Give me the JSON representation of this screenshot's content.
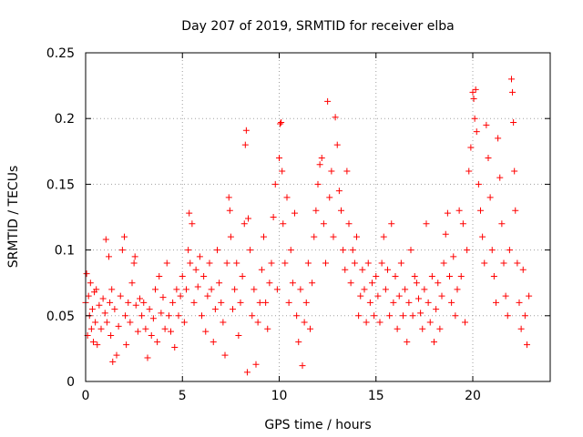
{
  "chart_data": {
    "type": "scatter",
    "title": "Day 207 of 2019, SRMTID for receiver elba",
    "xlabel": "GPS time / hours",
    "ylabel": "SRMTID / TECUs",
    "xlim": [
      0,
      24
    ],
    "ylim": [
      0,
      0.25
    ],
    "x_ticks": [
      0,
      5,
      10,
      15,
      20
    ],
    "y_ticks": [
      0,
      0.05,
      0.1,
      0.15,
      0.2,
      0.25
    ],
    "x_tick_labels": [
      "0",
      "5",
      "10",
      "15",
      "20"
    ],
    "y_tick_labels": [
      "0",
      "0.05",
      "0.1",
      "0.15",
      "0.2",
      "0.25"
    ],
    "grid": true,
    "marker": "+",
    "marker_color": "#ff0000",
    "x_range_of_data": [
      0,
      22.9
    ],
    "series": [
      {
        "name": "SRMTID",
        "points": [
          [
            0.0,
            0.06
          ],
          [
            0.05,
            0.082
          ],
          [
            0.1,
            0.035
          ],
          [
            0.15,
            0.065
          ],
          [
            0.2,
            0.05
          ],
          [
            0.25,
            0.075
          ],
          [
            0.3,
            0.04
          ],
          [
            0.35,
            0.055
          ],
          [
            0.4,
            0.03
          ],
          [
            0.45,
            0.068
          ],
          [
            0.5,
            0.045
          ],
          [
            0.55,
            0.07
          ],
          [
            0.6,
            0.028
          ],
          [
            0.7,
            0.058
          ],
          [
            0.8,
            0.04
          ],
          [
            0.9,
            0.063
          ],
          [
            1.0,
            0.052
          ],
          [
            1.05,
            0.108
          ],
          [
            1.1,
            0.045
          ],
          [
            1.2,
            0.095
          ],
          [
            1.25,
            0.06
          ],
          [
            1.3,
            0.035
          ],
          [
            1.35,
            0.07
          ],
          [
            1.4,
            0.015
          ],
          [
            1.5,
            0.055
          ],
          [
            1.6,
            0.02
          ],
          [
            1.7,
            0.042
          ],
          [
            1.8,
            0.065
          ],
          [
            1.9,
            0.1
          ],
          [
            2.0,
            0.11
          ],
          [
            2.05,
            0.05
          ],
          [
            2.1,
            0.028
          ],
          [
            2.2,
            0.06
          ],
          [
            2.3,
            0.045
          ],
          [
            2.4,
            0.075
          ],
          [
            2.5,
            0.09
          ],
          [
            2.55,
            0.095
          ],
          [
            2.6,
            0.058
          ],
          [
            2.7,
            0.038
          ],
          [
            2.8,
            0.063
          ],
          [
            2.9,
            0.05
          ],
          [
            3.0,
            0.06
          ],
          [
            3.1,
            0.04
          ],
          [
            3.2,
            0.018
          ],
          [
            3.3,
            0.055
          ],
          [
            3.4,
            0.035
          ],
          [
            3.5,
            0.048
          ],
          [
            3.6,
            0.07
          ],
          [
            3.7,
            0.03
          ],
          [
            3.8,
            0.08
          ],
          [
            3.9,
            0.052
          ],
          [
            4.0,
            0.064
          ],
          [
            4.1,
            0.04
          ],
          [
            4.2,
            0.09
          ],
          [
            4.3,
            0.05
          ],
          [
            4.4,
            0.038
          ],
          [
            4.5,
            0.06
          ],
          [
            4.6,
            0.026
          ],
          [
            4.7,
            0.07
          ],
          [
            4.8,
            0.05
          ],
          [
            4.9,
            0.065
          ],
          [
            5.0,
            0.08
          ],
          [
            5.1,
            0.045
          ],
          [
            5.2,
            0.07
          ],
          [
            5.3,
            0.1
          ],
          [
            5.35,
            0.128
          ],
          [
            5.4,
            0.09
          ],
          [
            5.5,
            0.12
          ],
          [
            5.6,
            0.06
          ],
          [
            5.7,
            0.085
          ],
          [
            5.8,
            0.072
          ],
          [
            5.9,
            0.095
          ],
          [
            6.0,
            0.05
          ],
          [
            6.1,
            0.08
          ],
          [
            6.2,
            0.038
          ],
          [
            6.3,
            0.065
          ],
          [
            6.4,
            0.09
          ],
          [
            6.5,
            0.07
          ],
          [
            6.6,
            0.03
          ],
          [
            6.7,
            0.055
          ],
          [
            6.8,
            0.1
          ],
          [
            6.9,
            0.075
          ],
          [
            7.0,
            0.06
          ],
          [
            7.1,
            0.045
          ],
          [
            7.2,
            0.02
          ],
          [
            7.3,
            0.09
          ],
          [
            7.4,
            0.14
          ],
          [
            7.45,
            0.13
          ],
          [
            7.5,
            0.11
          ],
          [
            7.6,
            0.055
          ],
          [
            7.7,
            0.07
          ],
          [
            7.8,
            0.09
          ],
          [
            7.9,
            0.035
          ],
          [
            8.0,
            0.06
          ],
          [
            8.1,
            0.08
          ],
          [
            8.2,
            0.12
          ],
          [
            8.25,
            0.18
          ],
          [
            8.3,
            0.191
          ],
          [
            8.35,
            0.007
          ],
          [
            8.4,
            0.124
          ],
          [
            8.5,
            0.1
          ],
          [
            8.6,
            0.05
          ],
          [
            8.7,
            0.07
          ],
          [
            8.8,
            0.013
          ],
          [
            8.9,
            0.045
          ],
          [
            9.0,
            0.06
          ],
          [
            9.1,
            0.085
          ],
          [
            9.2,
            0.11
          ],
          [
            9.3,
            0.06
          ],
          [
            9.4,
            0.04
          ],
          [
            9.5,
            0.075
          ],
          [
            9.6,
            0.09
          ],
          [
            9.7,
            0.125
          ],
          [
            9.8,
            0.15
          ],
          [
            9.9,
            0.07
          ],
          [
            10.0,
            0.17
          ],
          [
            10.05,
            0.196
          ],
          [
            10.1,
            0.197
          ],
          [
            10.15,
            0.16
          ],
          [
            10.2,
            0.12
          ],
          [
            10.3,
            0.09
          ],
          [
            10.4,
            0.14
          ],
          [
            10.5,
            0.06
          ],
          [
            10.6,
            0.1
          ],
          [
            10.7,
            0.075
          ],
          [
            10.8,
            0.128
          ],
          [
            10.9,
            0.05
          ],
          [
            11.0,
            0.03
          ],
          [
            11.1,
            0.07
          ],
          [
            11.2,
            0.012
          ],
          [
            11.3,
            0.045
          ],
          [
            11.4,
            0.06
          ],
          [
            11.5,
            0.09
          ],
          [
            11.6,
            0.04
          ],
          [
            11.7,
            0.075
          ],
          [
            11.8,
            0.11
          ],
          [
            11.9,
            0.13
          ],
          [
            12.0,
            0.15
          ],
          [
            12.1,
            0.165
          ],
          [
            12.2,
            0.17
          ],
          [
            12.3,
            0.12
          ],
          [
            12.4,
            0.09
          ],
          [
            12.5,
            0.213
          ],
          [
            12.6,
            0.14
          ],
          [
            12.7,
            0.16
          ],
          [
            12.8,
            0.11
          ],
          [
            12.9,
            0.201
          ],
          [
            13.0,
            0.18
          ],
          [
            13.1,
            0.145
          ],
          [
            13.2,
            0.13
          ],
          [
            13.3,
            0.1
          ],
          [
            13.4,
            0.085
          ],
          [
            13.5,
            0.16
          ],
          [
            13.6,
            0.12
          ],
          [
            13.7,
            0.075
          ],
          [
            13.8,
            0.1
          ],
          [
            13.9,
            0.09
          ],
          [
            14.0,
            0.11
          ],
          [
            14.1,
            0.05
          ],
          [
            14.2,
            0.065
          ],
          [
            14.3,
            0.085
          ],
          [
            14.4,
            0.07
          ],
          [
            14.5,
            0.045
          ],
          [
            14.6,
            0.09
          ],
          [
            14.7,
            0.06
          ],
          [
            14.8,
            0.075
          ],
          [
            14.9,
            0.05
          ],
          [
            15.0,
            0.08
          ],
          [
            15.1,
            0.065
          ],
          [
            15.2,
            0.045
          ],
          [
            15.3,
            0.09
          ],
          [
            15.4,
            0.11
          ],
          [
            15.5,
            0.07
          ],
          [
            15.6,
            0.085
          ],
          [
            15.7,
            0.05
          ],
          [
            15.8,
            0.12
          ],
          [
            15.9,
            0.06
          ],
          [
            16.0,
            0.08
          ],
          [
            16.1,
            0.04
          ],
          [
            16.2,
            0.065
          ],
          [
            16.3,
            0.09
          ],
          [
            16.4,
            0.05
          ],
          [
            16.5,
            0.07
          ],
          [
            16.6,
            0.03
          ],
          [
            16.7,
            0.06
          ],
          [
            16.8,
            0.1
          ],
          [
            16.9,
            0.05
          ],
          [
            17.0,
            0.08
          ],
          [
            17.1,
            0.075
          ],
          [
            17.2,
            0.063
          ],
          [
            17.3,
            0.052
          ],
          [
            17.4,
            0.04
          ],
          [
            17.5,
            0.07
          ],
          [
            17.6,
            0.12
          ],
          [
            17.7,
            0.06
          ],
          [
            17.8,
            0.045
          ],
          [
            17.9,
            0.08
          ],
          [
            18.0,
            0.03
          ],
          [
            18.1,
            0.055
          ],
          [
            18.2,
            0.075
          ],
          [
            18.3,
            0.04
          ],
          [
            18.4,
            0.065
          ],
          [
            18.5,
            0.09
          ],
          [
            18.6,
            0.112
          ],
          [
            18.7,
            0.128
          ],
          [
            18.8,
            0.08
          ],
          [
            18.9,
            0.06
          ],
          [
            19.0,
            0.095
          ],
          [
            19.1,
            0.05
          ],
          [
            19.2,
            0.07
          ],
          [
            19.3,
            0.13
          ],
          [
            19.4,
            0.08
          ],
          [
            19.5,
            0.12
          ],
          [
            19.6,
            0.045
          ],
          [
            19.7,
            0.1
          ],
          [
            19.8,
            0.16
          ],
          [
            19.9,
            0.178
          ],
          [
            20.0,
            0.22
          ],
          [
            20.05,
            0.215
          ],
          [
            20.1,
            0.2
          ],
          [
            20.15,
            0.222
          ],
          [
            20.2,
            0.19
          ],
          [
            20.3,
            0.15
          ],
          [
            20.4,
            0.13
          ],
          [
            20.5,
            0.11
          ],
          [
            20.6,
            0.09
          ],
          [
            20.7,
            0.195
          ],
          [
            20.8,
            0.17
          ],
          [
            20.9,
            0.14
          ],
          [
            21.0,
            0.1
          ],
          [
            21.1,
            0.08
          ],
          [
            21.2,
            0.06
          ],
          [
            21.3,
            0.185
          ],
          [
            21.4,
            0.155
          ],
          [
            21.5,
            0.12
          ],
          [
            21.6,
            0.09
          ],
          [
            21.7,
            0.065
          ],
          [
            21.8,
            0.05
          ],
          [
            21.9,
            0.1
          ],
          [
            22.0,
            0.23
          ],
          [
            22.05,
            0.22
          ],
          [
            22.1,
            0.197
          ],
          [
            22.15,
            0.16
          ],
          [
            22.2,
            0.13
          ],
          [
            22.3,
            0.09
          ],
          [
            22.4,
            0.06
          ],
          [
            22.5,
            0.04
          ],
          [
            22.6,
            0.085
          ],
          [
            22.7,
            0.05
          ],
          [
            22.8,
            0.028
          ],
          [
            22.9,
            0.065
          ]
        ]
      }
    ]
  }
}
